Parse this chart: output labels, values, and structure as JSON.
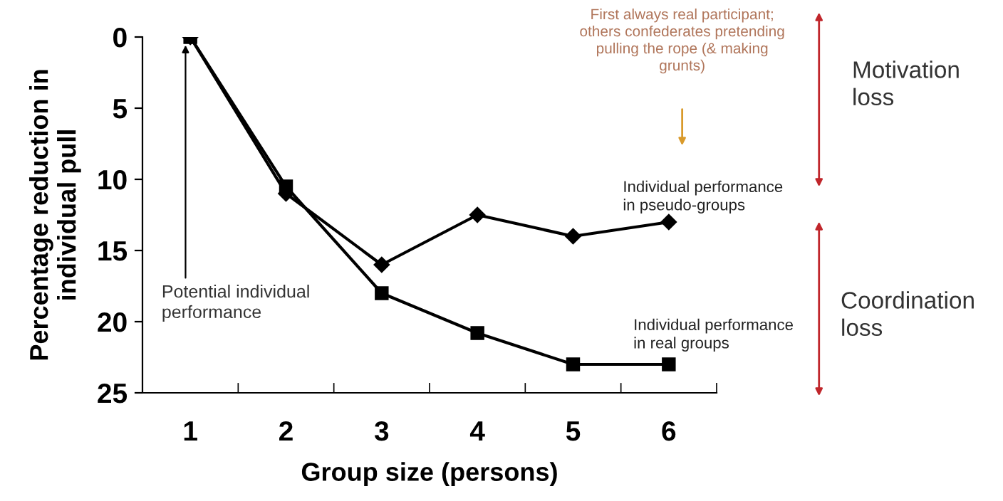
{
  "chart_data": {
    "type": "line",
    "xlabel": "Group size (persons)",
    "ylabel": "Percentage reduction in individual pull",
    "categories": [
      "1",
      "2",
      "3",
      "4",
      "5",
      "6"
    ],
    "series": [
      {
        "name": "Individual performance in pseudo-groups",
        "color": "#000000",
        "marker": "diamond",
        "values": [
          0,
          11,
          16,
          12.5,
          14,
          13
        ]
      },
      {
        "name": "Individual performance in real groups",
        "color": "#000000",
        "marker": "square",
        "values": [
          0,
          10.5,
          18,
          20.8,
          23,
          23
        ]
      }
    ],
    "ylim": [
      25,
      0
    ],
    "yticks": [
      0,
      5,
      10,
      15,
      20,
      25
    ],
    "grid": false,
    "legend": false,
    "line_style": "solid",
    "annotations": [
      {
        "text": "Potential individual performance",
        "x": "1",
        "y": 0
      },
      "First always real participant; others confederates pretending pulling the rope (& making grunts)",
      "Motivation loss",
      "Coordination loss"
    ]
  }
}
